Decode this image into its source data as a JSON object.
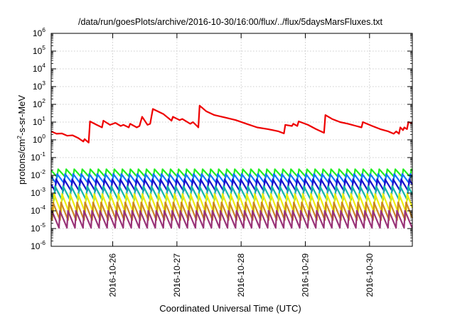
{
  "chart_data": {
    "type": "line",
    "title": "/data/run/goesPlots/archive/2016-10-30/16:00/flux/../flux/5daysMarsFluxes.txt",
    "xlabel": "Coordinated Universal Time (UTC)",
    "ylabel": {
      "pre": "protons/cm",
      "sup": "2",
      "post": "-s-sr-MeV"
    },
    "y_scale": "log",
    "ylim": [
      1e-06,
      1000000.0
    ],
    "y_ticks": [
      {
        "base": "10",
        "exp": "-6",
        "value": 1e-06
      },
      {
        "base": "10",
        "exp": "-5",
        "value": 1e-05
      },
      {
        "base": "10",
        "exp": "-4",
        "value": 0.0001
      },
      {
        "base": "10",
        "exp": "-3",
        "value": 0.001
      },
      {
        "base": "10",
        "exp": "-2",
        "value": 0.01
      },
      {
        "base": "10",
        "exp": "-1",
        "value": 0.1
      },
      {
        "base": "10",
        "exp": "0",
        "value": 1
      },
      {
        "base": "10",
        "exp": "1",
        "value": 10
      },
      {
        "base": "10",
        "exp": "2",
        "value": 100
      },
      {
        "base": "10",
        "exp": "3",
        "value": 1000
      },
      {
        "base": "10",
        "exp": "4",
        "value": 10000
      },
      {
        "base": "10",
        "exp": "5",
        "value": 100000
      },
      {
        "base": "10",
        "exp": "6",
        "value": 1000000
      }
    ],
    "x_range": [
      "2016-10-25 01:00",
      "2016-10-30 16:00"
    ],
    "x_ticks": [
      "2016-10-26",
      "2016-10-27",
      "2016-10-28",
      "2016-10-29",
      "2016-10-30"
    ],
    "grid": true,
    "legend": "none",
    "sawtooth_period_hours": 3,
    "series": [
      {
        "color": "#ee0000",
        "points": [
          [
            "2016-10-25 01:00",
            3.0
          ],
          [
            "2016-10-25 03:00",
            2.2
          ],
          [
            "2016-10-25 05:00",
            2.3
          ],
          [
            "2016-10-25 07:00",
            1.7
          ],
          [
            "2016-10-25 09:00",
            1.8
          ],
          [
            "2016-10-25 11:00",
            1.3
          ],
          [
            "2016-10-25 13:00",
            0.8
          ],
          [
            "2016-10-25 13:30",
            1.1
          ],
          [
            "2016-10-25 15:00",
            0.7
          ],
          [
            "2016-10-25 15:30",
            11
          ],
          [
            "2016-10-25 18:00",
            7
          ],
          [
            "2016-10-25 20:00",
            5
          ],
          [
            "2016-10-25 20:30",
            12
          ],
          [
            "2016-10-25 23:00",
            7
          ],
          [
            "2016-10-26 01:00",
            9
          ],
          [
            "2016-10-26 03:00",
            6
          ],
          [
            "2016-10-26 04:00",
            7
          ],
          [
            "2016-10-26 06:00",
            5
          ],
          [
            "2016-10-26 06:30",
            8
          ],
          [
            "2016-10-26 09:00",
            5
          ],
          [
            "2016-10-26 10:00",
            6
          ],
          [
            "2016-10-26 11:00",
            20
          ],
          [
            "2016-10-26 13:00",
            7
          ],
          [
            "2016-10-26 14:00",
            8
          ],
          [
            "2016-10-26 15:00",
            55
          ],
          [
            "2016-10-26 19:00",
            28
          ],
          [
            "2016-10-26 22:00",
            12
          ],
          [
            "2016-10-26 22:30",
            20
          ],
          [
            "2016-10-27 01:00",
            13
          ],
          [
            "2016-10-27 02:00",
            15
          ],
          [
            "2016-10-27 05:00",
            8
          ],
          [
            "2016-10-27 06:00",
            10
          ],
          [
            "2016-10-27 07:30",
            6
          ],
          [
            "2016-10-27 08:00",
            5
          ],
          [
            "2016-10-27 08:30",
            85
          ],
          [
            "2016-10-27 11:00",
            40
          ],
          [
            "2016-10-27 14:00",
            25
          ],
          [
            "2016-10-27 18:00",
            18
          ],
          [
            "2016-10-27 22:00",
            13
          ],
          [
            "2016-10-28 02:00",
            8
          ],
          [
            "2016-10-28 06:00",
            5
          ],
          [
            "2016-10-28 10:00",
            4
          ],
          [
            "2016-10-28 14:00",
            3
          ],
          [
            "2016-10-28 16:00",
            2.3
          ],
          [
            "2016-10-28 16:30",
            7
          ],
          [
            "2016-10-28 19:00",
            6
          ],
          [
            "2016-10-28 19:30",
            8
          ],
          [
            "2016-10-28 21:00",
            6
          ],
          [
            "2016-10-28 21:30",
            11
          ],
          [
            "2016-10-29 01:00",
            7
          ],
          [
            "2016-10-29 04:00",
            4
          ],
          [
            "2016-10-29 07:00",
            2.5
          ],
          [
            "2016-10-29 07:30",
            25
          ],
          [
            "2016-10-29 10:00",
            15
          ],
          [
            "2016-10-29 13:00",
            10
          ],
          [
            "2016-10-29 16:00",
            8
          ],
          [
            "2016-10-29 19:00",
            6
          ],
          [
            "2016-10-29 21:00",
            5
          ],
          [
            "2016-10-29 21:30",
            10
          ],
          [
            "2016-10-30 01:00",
            6
          ],
          [
            "2016-10-30 04:00",
            4
          ],
          [
            "2016-10-30 07:00",
            3
          ],
          [
            "2016-10-30 09:00",
            2.2
          ],
          [
            "2016-10-30 10:00",
            3
          ],
          [
            "2016-10-30 11:00",
            2.2
          ],
          [
            "2016-10-30 11:30",
            5
          ],
          [
            "2016-10-30 12:30",
            3.5
          ],
          [
            "2016-10-30 13:00",
            5
          ],
          [
            "2016-10-30 14:00",
            4
          ],
          [
            "2016-10-30 14:30",
            10
          ],
          [
            "2016-10-30 16:00",
            8.5
          ]
        ]
      },
      {
        "color": "#22ee22",
        "peak": 0.022,
        "trough": 0.008
      },
      {
        "color": "#1177ff",
        "peak": 0.012,
        "trough": 0.0035
      },
      {
        "color": "#1a10cc",
        "peak": 0.006,
        "trough": 0.0013
      },
      {
        "color": "#14b6a8",
        "peak": 0.0025,
        "trough": 0.0004
      },
      {
        "color": "#eeee10",
        "peak": 0.0009,
        "trough": 8e-05
      },
      {
        "color": "#cc8822",
        "peak": 0.0003,
        "trough": 3e-05
      },
      {
        "color": "#993377",
        "peak": 0.0001,
        "trough": 1.1e-05
      }
    ]
  }
}
